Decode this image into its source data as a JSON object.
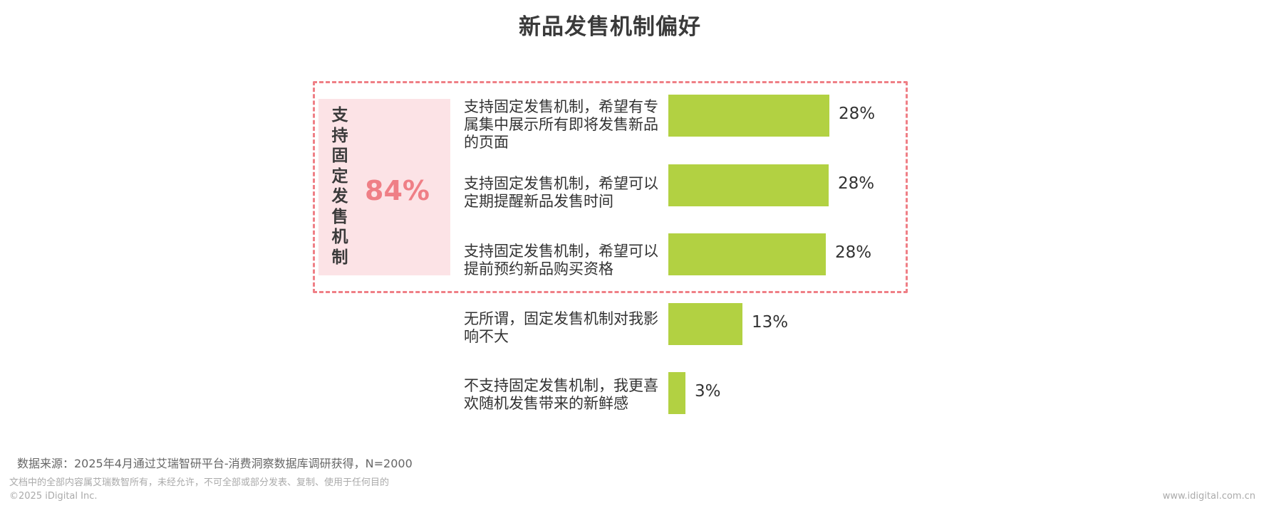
{
  "chart_data": {
    "type": "bar",
    "orientation": "horizontal",
    "title": "新品发售机制偏好",
    "categories": [
      "支持固定发售机制，希望有专属集中展示所有即将发售新品的页面",
      "支持固定发售机制，希望可以定期提醒新品发售时间",
      "支持固定发售机制，希望可以提前预约新品购买资格",
      "无所谓，固定发售机制对我影响不大",
      "不支持固定发售机制，我更喜欢随机发售带来的新鲜感"
    ],
    "values": [
      28.2,
      28.1,
      27.6,
      13.0,
      3.0
    ],
    "value_labels": [
      "28%",
      "28%",
      "28%",
      "13%",
      "3%"
    ],
    "bar_color": "#b2d142",
    "group": {
      "label": "支持固定发售机制",
      "value_label": "84%",
      "members": [
        0,
        1,
        2
      ],
      "border_color": "#ef7f86",
      "fill_color": "#fce3e6"
    }
  },
  "footer": {
    "source": "数据来源：2025年4月通过艾瑞智研平台-消费洞察数据库调研获得，N=2000",
    "disclaimer": "文档中的全部内容属艾瑞数智所有，未经允许，不可全部或部分发表、复制、使用于任何目的",
    "copyright": "©2025 iDigital Inc.",
    "website": "www.idigital.com.cn"
  }
}
